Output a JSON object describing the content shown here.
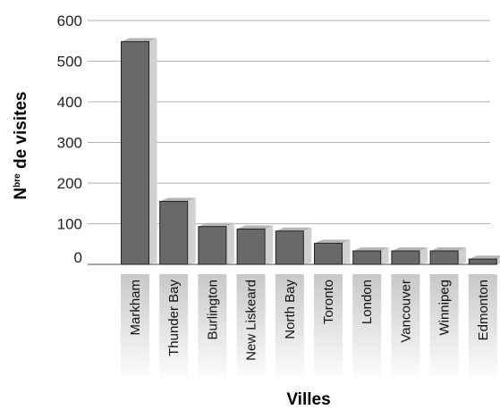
{
  "chart_data": {
    "type": "bar",
    "title": "",
    "xlabel": "Villes",
    "ylabel_main": "N",
    "ylabel_sup": "bre",
    "ylabel_rest": " de visites",
    "categories": [
      "Markham",
      "Thunder Bay",
      "Burlington",
      "New Liskeard",
      "North Bay",
      "Toronto",
      "London",
      "Vancouver",
      "Winnipeg",
      "Edmonton"
    ],
    "values": [
      548,
      155,
      93,
      87,
      82,
      52,
      33,
      33,
      33,
      13
    ],
    "yticks": [
      0,
      100,
      200,
      300,
      400,
      500,
      600
    ],
    "ylim": [
      0,
      600
    ],
    "grid": true,
    "legend": "none"
  },
  "colors": {
    "bar_front": "#696969",
    "bar_top": "#b5b5b5",
    "bar_shadow": "#d0d0d0",
    "grid": "#b0b0b0",
    "label_band_top": "#c8c8c8",
    "label_band_bottom": "#ffffff"
  }
}
